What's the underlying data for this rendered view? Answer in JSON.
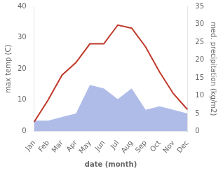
{
  "chart_data": {
    "type": "line",
    "categories": [
      "Jan",
      "Feb",
      "Mar",
      "Apr",
      "May",
      "Jun",
      "Jul",
      "Aug",
      "Sep",
      "Oct",
      "Nov",
      "Dec"
    ],
    "series": [
      {
        "type": "area",
        "axis": "y2",
        "color": "#b0bce8",
        "values": [
          3,
          3,
          4,
          5,
          13,
          12,
          9,
          12,
          6,
          7,
          6,
          5
        ]
      },
      {
        "type": "line",
        "color": "#c0392b",
        "values": [
          3,
          10,
          18,
          22,
          28,
          28,
          34,
          33,
          27,
          19,
          12,
          7
        ]
      }
    ],
    "xlabel": "date (month)",
    "ylabel": "max temp (C)",
    "y2label": "med. precipitation (kg/m2)",
    "ylim": [
      0,
      40
    ],
    "yticks": [
      0,
      10,
      20,
      30,
      40
    ],
    "y2lim": [
      0,
      35
    ],
    "y2ticks": [
      0,
      5,
      10,
      15,
      20,
      25,
      30,
      35
    ],
    "grid": false
  }
}
